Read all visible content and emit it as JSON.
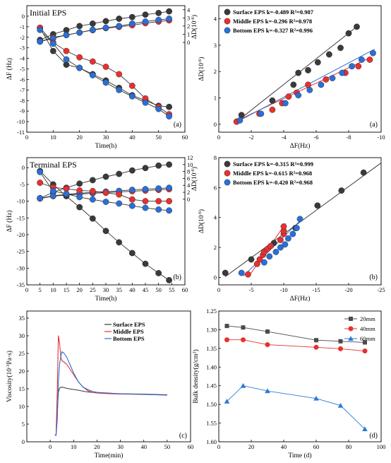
{
  "chart_data": [
    {
      "id": "a1",
      "type": "line",
      "title": "Initial EPS",
      "panel_label": "(a)",
      "xlabel": "Time(h)",
      "ylabel": "ΔF (Hz)",
      "ylabel_right": "ΔD(10^-6)",
      "xlim": [
        0,
        60
      ],
      "ylim": [
        -11,
        1
      ],
      "ylim_right": [
        -11,
        4.5
      ],
      "xticks": [
        0,
        10,
        20,
        30,
        40,
        50,
        60
      ],
      "yticks": [
        0,
        -1,
        -2,
        -3,
        -4,
        -5,
        -6,
        -7,
        -8,
        -9,
        -10,
        -11
      ],
      "yticks_right": [
        0,
        1,
        2,
        3,
        4
      ],
      "series": [
        {
          "axis": "right",
          "color": "#3a3a3a",
          "x": [
            5,
            10,
            15,
            20,
            25,
            30,
            35,
            40,
            45,
            50,
            54
          ],
          "y": [
            0.3,
            1.0,
            1.5,
            2.0,
            2.3,
            2.6,
            2.9,
            3.1,
            3.4,
            3.6,
            3.8
          ]
        },
        {
          "axis": "right",
          "color": "#e83030",
          "x": [
            5,
            10,
            15,
            20,
            25,
            30,
            35,
            40,
            45,
            50,
            54
          ],
          "y": [
            0.1,
            0.6,
            0.9,
            1.2,
            1.5,
            1.75,
            1.9,
            2.1,
            2.35,
            2.55,
            2.7
          ]
        },
        {
          "axis": "right",
          "color": "#2b6fd6",
          "x": [
            5,
            10,
            15,
            20,
            25,
            30,
            35,
            40,
            45,
            50,
            54
          ],
          "y": [
            0.1,
            0.5,
            0.9,
            1.2,
            1.55,
            1.8,
            2.0,
            2.3,
            2.55,
            2.75,
            2.9
          ]
        },
        {
          "axis": "left",
          "color": "#3a3a3a",
          "x": [
            5,
            10,
            15,
            20,
            25,
            30,
            35,
            40,
            45,
            50,
            54
          ],
          "y": [
            -1.1,
            -3.3,
            -4.6,
            -4.9,
            -5.5,
            -6.1,
            -6.8,
            -7.5,
            -8.0,
            -8.5,
            -8.6
          ]
        },
        {
          "axis": "left",
          "color": "#e83030",
          "x": [
            5,
            10,
            15,
            20,
            25,
            30,
            35,
            40,
            45,
            50,
            54
          ],
          "y": [
            -1.1,
            -2.5,
            -3.3,
            -3.9,
            -4.3,
            -4.8,
            -5.5,
            -6.6,
            -7.8,
            -8.6,
            -9.3
          ]
        },
        {
          "axis": "left",
          "color": "#2b6fd6",
          "x": [
            5,
            10,
            15,
            20,
            25,
            30,
            35,
            40,
            45,
            50,
            54
          ],
          "y": [
            -1.3,
            -2.6,
            -4.1,
            -4.9,
            -5.6,
            -6.3,
            -7.0,
            -7.6,
            -8.2,
            -8.8,
            -9.5
          ]
        }
      ]
    },
    {
      "id": "a2",
      "type": "scatter",
      "panel_label": "(a)",
      "xlabel": "ΔF(Hz)",
      "ylabel": "ΔD(10^-6)",
      "xlim": [
        0,
        -10
      ],
      "ylim": [
        -0.3,
        4.5
      ],
      "xticks": [
        0,
        -2,
        -4,
        -6,
        -8,
        -10
      ],
      "yticks": [
        0,
        1,
        2,
        3,
        4
      ],
      "legend": [
        {
          "color": "#3a3a3a",
          "text": "Surface EPS k=-0.489 R²=0.987"
        },
        {
          "color": "#e83030",
          "text": "Middle EPS k=-0.296 R²=0.978"
        },
        {
          "color": "#2b6fd6",
          "text": "Bottom  EPS k=-0.327 R²=0.996"
        }
      ],
      "series": [
        {
          "color": "#3a3a3a",
          "x": [
            -1.1,
            -1.4,
            -3.3,
            -4.6,
            -4.9,
            -5.5,
            -6.1,
            -6.8,
            -7.5,
            -8.0,
            -8.5
          ],
          "y": [
            0.1,
            0.35,
            0.9,
            1.5,
            1.95,
            2.05,
            2.35,
            2.65,
            2.9,
            3.45,
            3.7
          ]
        },
        {
          "color": "#e83030",
          "x": [
            -1.1,
            -2.5,
            -3.3,
            -3.9,
            -4.3,
            -4.8,
            -5.5,
            -6.6,
            -7.8,
            -8.6,
            -9.3
          ],
          "y": [
            0.1,
            0.4,
            0.55,
            0.8,
            1.05,
            1.2,
            1.5,
            1.7,
            1.95,
            2.2,
            2.45
          ]
        },
        {
          "color": "#2b6fd6",
          "x": [
            -1.3,
            -2.6,
            -4.1,
            -4.9,
            -5.6,
            -6.3,
            -7.0,
            -7.6,
            -8.2,
            -8.8,
            -9.5
          ],
          "y": [
            0.15,
            0.4,
            0.8,
            1.1,
            1.3,
            1.5,
            1.75,
            1.95,
            2.2,
            2.45,
            2.7
          ]
        }
      ],
      "fits": [
        {
          "color": "#3a3a3a",
          "x": [
            -1.0,
            -8.6
          ],
          "y": [
            0.05,
            3.75
          ]
        },
        {
          "color": "#e83030",
          "x": [
            -1.0,
            -9.4
          ],
          "y": [
            0.1,
            2.55
          ]
        },
        {
          "color": "#2b6fd6",
          "x": [
            -1.0,
            -9.6
          ],
          "y": [
            0.05,
            2.85
          ]
        }
      ]
    },
    {
      "id": "b1",
      "type": "line",
      "title": "Terminal EPS",
      "panel_label": "(b)",
      "xlabel": "Time(h)",
      "ylabel": "ΔF (Hz)",
      "ylabel_right": "ΔD(10^-6)",
      "xlim": [
        0,
        60
      ],
      "ylim": [
        -35,
        3
      ],
      "ylim_right": [
        -24.7,
        12
      ],
      "xticks": [
        0,
        5,
        10,
        15,
        20,
        25,
        30,
        35,
        40,
        45,
        50,
        55,
        60
      ],
      "yticks": [
        0,
        -5,
        -10,
        -15,
        -20,
        -25,
        -30,
        -35
      ],
      "yticks_right": [
        0,
        2,
        4,
        6,
        8,
        10,
        12
      ],
      "series": [
        {
          "axis": "right",
          "color": "#3a3a3a",
          "x": [
            5,
            10,
            15,
            20,
            25,
            30,
            35,
            40,
            45,
            50,
            54
          ],
          "y": [
            0.3,
            2.0,
            3.3,
            4.5,
            5.5,
            6.5,
            7.3,
            8.3,
            9.0,
            9.7,
            10.0
          ]
        },
        {
          "axis": "right",
          "color": "#e83030",
          "x": [
            5,
            10,
            15,
            20,
            25,
            30,
            35,
            40,
            45,
            50,
            54
          ],
          "y": [
            0.2,
            0.9,
            1.2,
            1.5,
            1.7,
            1.9,
            2.1,
            2.3,
            2.5,
            2.7,
            2.9
          ]
        },
        {
          "axis": "right",
          "color": "#2b6fd6",
          "x": [
            5,
            10,
            15,
            20,
            25,
            30,
            35,
            40,
            45,
            50,
            54
          ],
          "y": [
            0.3,
            1.0,
            1.4,
            1.7,
            2.0,
            2.2,
            2.4,
            2.7,
            2.9,
            3.1,
            3.3
          ]
        },
        {
          "axis": "left",
          "color": "#3a3a3a",
          "x": [
            5,
            10,
            15,
            20,
            25,
            30,
            35,
            40,
            45,
            50,
            54
          ],
          "y": [
            -1.0,
            -5.0,
            -8.5,
            -11.8,
            -15.2,
            -18.9,
            -22.3,
            -25.5,
            -28.7,
            -31.5,
            -33.6
          ]
        },
        {
          "axis": "left",
          "color": "#e83030",
          "x": [
            5,
            10,
            15,
            20,
            25,
            30,
            35,
            40,
            45,
            50,
            54
          ],
          "y": [
            -4.5,
            -5.9,
            -6.3,
            -6.8,
            -7.0,
            -7.5,
            -8.0,
            -9.5,
            -10.0,
            -10.0,
            -10.0
          ]
        },
        {
          "axis": "left",
          "color": "#2b6fd6",
          "x": [
            5,
            10,
            15,
            20,
            25,
            30,
            35,
            40,
            45,
            50,
            54
          ],
          "y": [
            -1.3,
            -7.0,
            -7.8,
            -8.8,
            -9.5,
            -10.2,
            -10.7,
            -11.4,
            -12.0,
            -12.5,
            -12.8
          ]
        }
      ]
    },
    {
      "id": "b2",
      "type": "scatter",
      "panel_label": "(b)",
      "xlabel": "ΔF(Hz)",
      "ylabel": "ΔD(10^-6)",
      "xlim": [
        0,
        -25
      ],
      "ylim": [
        -0.5,
        8
      ],
      "xticks": [
        0,
        -5,
        -10,
        -15,
        -20,
        -25
      ],
      "yticks": [
        0,
        2,
        4,
        6,
        8
      ],
      "legend": [
        {
          "color": "#3a3a3a",
          "text": "Surface EPS k=-0.315 R²=0.999"
        },
        {
          "color": "#e83030",
          "text": "Middle  EPS k=-0.615 R²=0.968"
        },
        {
          "color": "#2b6fd6",
          "text": "Bottom  EPS k=-0.420 R²=0.968"
        }
      ],
      "series": [
        {
          "color": "#3a3a3a",
          "x": [
            -1.0,
            -5.0,
            -8.5,
            -11.8,
            -15.2,
            -18.9,
            -22.3
          ],
          "y": [
            0.3,
            1.2,
            2.3,
            3.3,
            4.8,
            5.8,
            7.0
          ]
        },
        {
          "color": "#e83030",
          "x": [
            -4.5,
            -5.9,
            -6.3,
            -6.8,
            -7.0,
            -7.5,
            -8.0,
            -9.5,
            -10.0,
            -10.0,
            -10.0
          ],
          "y": [
            0.2,
            0.9,
            1.2,
            1.5,
            1.7,
            1.9,
            2.1,
            2.5,
            2.9,
            3.1,
            3.4
          ]
        },
        {
          "color": "#2b6fd6",
          "x": [
            -3.5,
            -7.0,
            -7.8,
            -8.8,
            -9.5,
            -10.2,
            -10.7,
            -11.4,
            -12.0,
            -12.5
          ],
          "y": [
            0.3,
            1.0,
            1.4,
            1.7,
            2.0,
            2.2,
            2.6,
            2.9,
            3.3,
            3.9
          ]
        }
      ],
      "fits": [
        {
          "color": "#3a3a3a",
          "x": [
            -1.0,
            -25.0
          ],
          "y": [
            0.05,
            7.65
          ]
        },
        {
          "color": "#e83030",
          "x": [
            -4.5,
            -10.3
          ],
          "y": [
            0.0,
            3.6
          ]
        },
        {
          "color": "#2b6fd6",
          "x": [
            -3.8,
            -12.8
          ],
          "y": [
            0.1,
            3.9
          ]
        }
      ]
    },
    {
      "id": "c",
      "type": "line",
      "panel_label": "(c)",
      "xlabel": "Time(min)",
      "ylabel": "Viscosity(10^-3Pa·s)",
      "xlim": [
        -10,
        60
      ],
      "ylim": [
        0,
        37
      ],
      "xticks": [
        0,
        10,
        20,
        30,
        40,
        50,
        60
      ],
      "yticks": [
        0,
        5,
        10,
        15,
        20,
        25,
        30,
        35
      ],
      "legend": [
        {
          "color": "#3a3a3a",
          "text": "Surface EPS"
        },
        {
          "color": "#e83030",
          "text": "Middle  EPS"
        },
        {
          "color": "#2b6fd6",
          "text": "Bottom  EPS"
        }
      ],
      "series": [
        {
          "color": "#3a3a3a",
          "x": [
            2.0,
            2.5,
            3.0,
            3.5,
            4.0,
            5.0,
            6.0,
            8.0,
            10,
            12,
            15,
            20,
            30,
            40,
            50
          ],
          "y": [
            2.0,
            1.8,
            8.0,
            14.0,
            15.2,
            15.5,
            15.3,
            15.0,
            14.8,
            14.6,
            14.2,
            13.8,
            13.6,
            13.5,
            13.3
          ]
        },
        {
          "color": "#e83030",
          "x": [
            2.0,
            2.5,
            3.0,
            3.5,
            4.0,
            4.5,
            5,
            6,
            7,
            8,
            9,
            10,
            12,
            14,
            16,
            18,
            20,
            25,
            30,
            40,
            50
          ],
          "y": [
            2.0,
            1.8,
            14.0,
            30.0,
            28.0,
            24.0,
            23.0,
            22.5,
            22.0,
            21.0,
            20.0,
            19.0,
            17.0,
            15.5,
            14.5,
            14.0,
            13.8,
            13.6,
            13.5,
            13.4,
            13.2
          ]
        },
        {
          "color": "#2b6fd6",
          "x": [
            2.0,
            2.5,
            3.0,
            3.5,
            4.0,
            4.5,
            5,
            6,
            7,
            8,
            9,
            10,
            12,
            14,
            16,
            18,
            20,
            25,
            30,
            40,
            50
          ],
          "y": [
            2.0,
            1.8,
            6.0,
            17.0,
            22.0,
            24.0,
            25.5,
            25.0,
            24.0,
            22.5,
            21.0,
            19.5,
            17.0,
            15.5,
            14.8,
            14.3,
            14.0,
            13.8,
            13.6,
            13.4,
            13.2
          ]
        }
      ]
    },
    {
      "id": "d",
      "type": "line",
      "panel_label": "(d)",
      "xlabel": "Time (d)",
      "ylabel": "Bulk density(g/cm³)",
      "xlim": [
        0,
        100
      ],
      "ylim": [
        1.6,
        1.25
      ],
      "xticks": [
        0,
        20,
        40,
        60,
        80,
        100
      ],
      "yticks": [
        1.25,
        1.3,
        1.35,
        1.4,
        1.45,
        1.5,
        1.55,
        1.6
      ],
      "legend": [
        {
          "color": "#4a4a4a",
          "marker": "square",
          "text": "20mm"
        },
        {
          "color": "#e83030",
          "marker": "circle",
          "text": "40mm"
        },
        {
          "color": "#2b7ad6",
          "marker": "triangle",
          "text": "60mm"
        }
      ],
      "series": [
        {
          "color": "#4a4a4a",
          "marker": "square",
          "x": [
            5,
            15,
            30,
            60,
            75,
            90
          ],
          "y": [
            1.29,
            1.294,
            1.305,
            1.328,
            1.331,
            1.334
          ]
        },
        {
          "color": "#e83030",
          "marker": "circle",
          "x": [
            5,
            15,
            30,
            60,
            75,
            90
          ],
          "y": [
            1.327,
            1.327,
            1.34,
            1.347,
            1.351,
            1.357
          ]
        },
        {
          "color": "#2b7ad6",
          "marker": "triangle",
          "x": [
            5,
            15,
            30,
            60,
            75,
            90
          ],
          "y": [
            1.492,
            1.45,
            1.464,
            1.484,
            1.503,
            1.566
          ]
        }
      ]
    }
  ]
}
